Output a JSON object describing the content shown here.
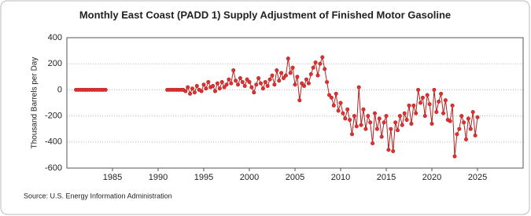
{
  "chart_data": {
    "type": "line",
    "title": "Monthly East Coast (PADD 1) Supply Adjustment of Finished Motor Gasoline",
    "y_label": "Thousand Barrels per Day",
    "source": "Source: U.S. Energy Information Administration",
    "color": "#b22222",
    "marker_color": "#e03030",
    "grid": true,
    "xlim": [
      1980,
      2030
    ],
    "xticks": [
      1985,
      1990,
      1995,
      2000,
      2005,
      2010,
      2015,
      2020,
      2025
    ],
    "ylim": [
      -600,
      400
    ],
    "yticks": [
      -600,
      -400,
      -200,
      0,
      200,
      400
    ],
    "x": [
      1981,
      1981.25,
      1981.5,
      1981.75,
      1982,
      1982.25,
      1982.5,
      1982.75,
      1983,
      1983.25,
      1983.5,
      1983.75,
      1984,
      1984.25,
      1987.5,
      1991,
      1991.25,
      1991.5,
      1991.75,
      1992,
      1992.25,
      1992.5,
      1992.75,
      1993,
      1993.25,
      1993.5,
      1993.75,
      1994,
      1994.25,
      1994.5,
      1994.75,
      1995,
      1995.25,
      1995.5,
      1995.75,
      1996,
      1996.25,
      1996.5,
      1996.75,
      1997,
      1997.25,
      1997.5,
      1997.75,
      1998,
      1998.25,
      1998.5,
      1998.75,
      1999,
      1999.25,
      1999.5,
      1999.75,
      2000,
      2000.25,
      2000.5,
      2000.75,
      2001,
      2001.25,
      2001.5,
      2001.75,
      2002,
      2002.25,
      2002.5,
      2002.75,
      2003,
      2003.25,
      2003.5,
      2003.75,
      2004,
      2004.25,
      2004.5,
      2004.75,
      2005,
      2005.25,
      2005.5,
      2005.75,
      2006,
      2006.25,
      2006.5,
      2006.75,
      2007,
      2007.25,
      2007.5,
      2007.75,
      2008,
      2008.25,
      2008.5,
      2008.75,
      2009,
      2009.25,
      2009.5,
      2009.75,
      2010,
      2010.25,
      2010.5,
      2010.75,
      2011,
      2011.25,
      2011.5,
      2011.75,
      2012,
      2012.25,
      2012.5,
      2012.75,
      2013,
      2013.25,
      2013.5,
      2013.75,
      2014,
      2014.25,
      2014.5,
      2014.75,
      2015,
      2015.25,
      2015.5,
      2015.75,
      2016,
      2016.25,
      2016.5,
      2016.75,
      2017,
      2017.25,
      2017.5,
      2017.75,
      2018,
      2018.25,
      2018.5,
      2018.75,
      2019,
      2019.25,
      2019.5,
      2019.75,
      2020,
      2020.25,
      2020.5,
      2020.75,
      2021,
      2021.25,
      2021.5,
      2021.75,
      2022,
      2022.25,
      2022.5,
      2022.75,
      2023,
      2023.25,
      2023.5,
      2023.75,
      2024,
      2024.25,
      2024.5,
      2024.75,
      2025
    ],
    "values": [
      0,
      0,
      0,
      0,
      0,
      0,
      0,
      0,
      0,
      0,
      0,
      0,
      0,
      0,
      null,
      0,
      0,
      0,
      0,
      0,
      0,
      0,
      0,
      -10,
      20,
      -30,
      10,
      -20,
      30,
      0,
      -10,
      40,
      10,
      60,
      20,
      30,
      -10,
      50,
      10,
      60,
      20,
      40,
      80,
      50,
      150,
      70,
      40,
      90,
      60,
      30,
      80,
      60,
      20,
      -20,
      40,
      90,
      50,
      10,
      60,
      30,
      80,
      110,
      40,
      150,
      70,
      130,
      90,
      110,
      240,
      130,
      170,
      40,
      100,
      -80,
      50,
      30,
      80,
      50,
      120,
      170,
      210,
      110,
      200,
      250,
      160,
      60,
      -40,
      -60,
      -120,
      -30,
      -160,
      -100,
      -180,
      -220,
      -150,
      -230,
      -340,
      -200,
      -280,
      20,
      -270,
      -150,
      -300,
      -200,
      -250,
      -410,
      -180,
      -300,
      -220,
      -360,
      -250,
      -200,
      -460,
      -300,
      -470,
      -250,
      -310,
      -200,
      -270,
      -180,
      -230,
      -120,
      -260,
      -120,
      -180,
      0,
      -100,
      -60,
      -200,
      -40,
      -110,
      -260,
      0,
      -170,
      -90,
      -30,
      -180,
      -80,
      -230,
      -240,
      -120,
      -510,
      -340,
      -300,
      -200,
      -250,
      -380,
      -220,
      -300,
      -170,
      -350,
      -210
    ]
  }
}
